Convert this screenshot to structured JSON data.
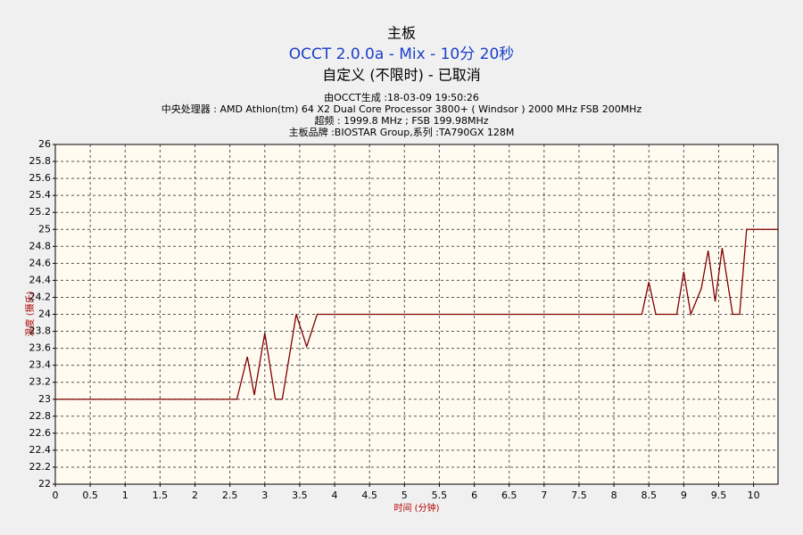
{
  "chart_data": {
    "type": "line",
    "title": "主板",
    "subtitle": "OCCT 2.0.0a - Mix - 10分 20秒",
    "status": "自定义 (不限时) - 已取消",
    "info": [
      "由OCCT生成 :18-03-09 19:50:26",
      "中央处理器 : AMD Athlon(tm) 64 X2 Dual Core Processor 3800+ ( Windsor ) 2000 MHz FSB 200MHz",
      "超频 : 1999.8 MHz ; FSB 199.98MHz",
      "主板品牌 :BIOSTAR Group,系列 :TA790GX 128M"
    ],
    "xlabel": "时间 (分钟)",
    "ylabel": "温度 (摄氏)",
    "x": [
      0,
      2.6,
      2.75,
      2.85,
      3.0,
      3.15,
      3.25,
      3.45,
      3.6,
      3.75,
      8.4,
      8.5,
      8.6,
      8.9,
      9.0,
      9.1,
      9.25,
      9.35,
      9.45,
      9.55,
      9.7,
      9.8,
      9.9,
      10.35
    ],
    "values": [
      23,
      23,
      23.5,
      23.05,
      23.78,
      23,
      23,
      24,
      23.62,
      24,
      24,
      24.38,
      24,
      24,
      24.5,
      24,
      24.3,
      24.75,
      24.15,
      24.78,
      24,
      24,
      25,
      25
    ],
    "color": "#800000",
    "xlim": [
      0,
      10.35
    ],
    "ylim": [
      22,
      26
    ],
    "xticks": [
      0,
      0.5,
      1,
      1.5,
      2,
      2.5,
      3,
      3.5,
      4,
      4.5,
      5,
      5.5,
      6,
      6.5,
      7,
      7.5,
      8,
      8.5,
      9,
      9.5,
      10
    ],
    "yticks": [
      22,
      22.2,
      22.4,
      22.6,
      22.8,
      23,
      23.2,
      23.4,
      23.6,
      23.8,
      24,
      24.2,
      24.4,
      24.6,
      24.8,
      25,
      25.2,
      25.4,
      25.6,
      25.8,
      26
    ],
    "grid": true
  }
}
